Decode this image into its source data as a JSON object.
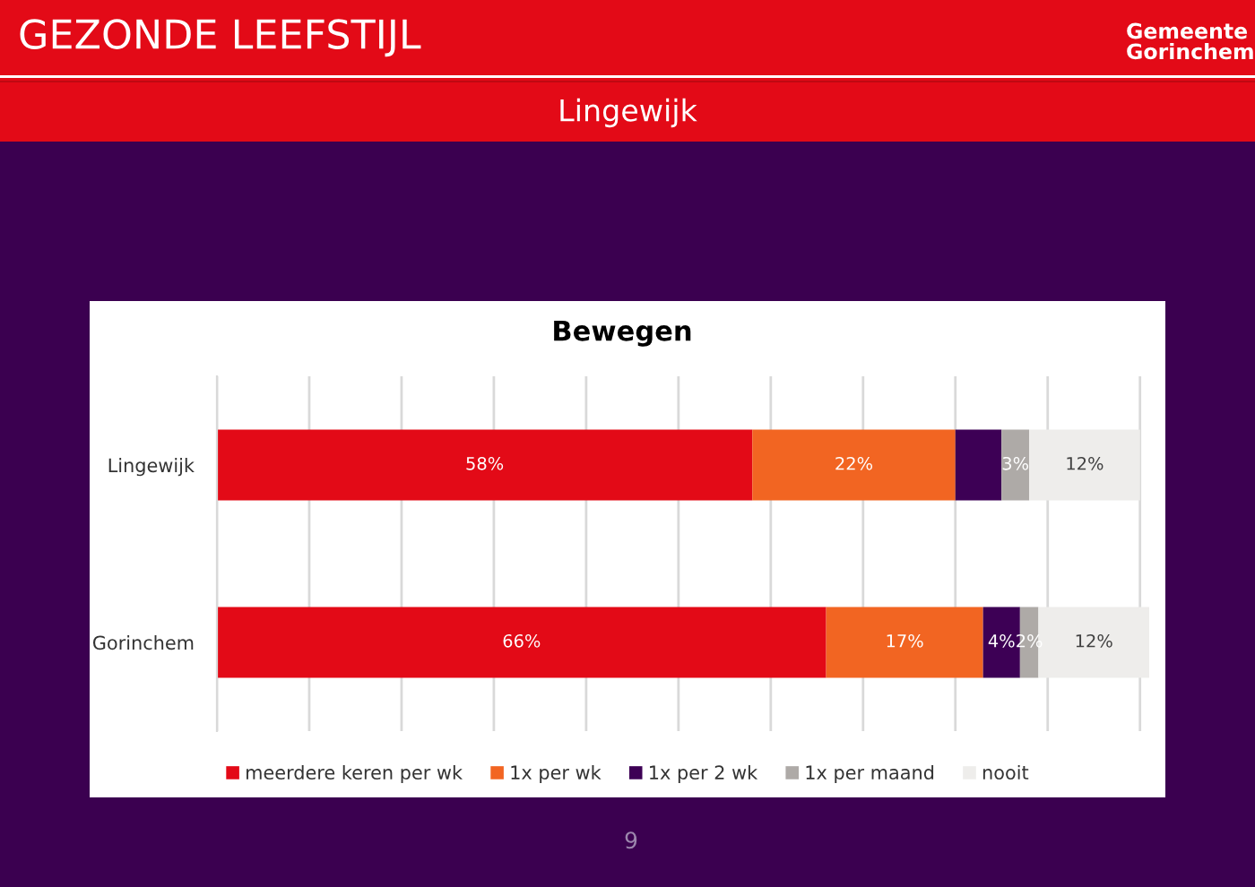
{
  "chart_data": {
    "type": "bar",
    "orientation": "horizontal",
    "stacked": true,
    "title": "Bewegen",
    "categories": [
      "Lingewijk",
      "Gorinchem"
    ],
    "series": [
      {
        "name": "meerdere keren per wk",
        "color": "#e30a17",
        "values": [
          58,
          66
        ],
        "value_labels": [
          "58%",
          "66%"
        ]
      },
      {
        "name": "1x per wk",
        "color": "#f26522",
        "values": [
          22,
          17
        ],
        "value_labels": [
          "22%",
          "17%"
        ]
      },
      {
        "name": "1x per 2 wk",
        "color": "#3d0055",
        "values": [
          5,
          4
        ],
        "value_labels": [
          null,
          "4%"
        ]
      },
      {
        "name": "1x per maand",
        "color": "#aeaaa7",
        "values": [
          3,
          2
        ],
        "value_labels": [
          "3%",
          "2%"
        ]
      },
      {
        "name": "nooit",
        "color": "#eeedeb",
        "values": [
          12,
          12
        ],
        "value_labels": [
          "12%",
          "12%"
        ]
      }
    ],
    "xlim": [
      0,
      101
    ],
    "xticks": [
      {
        "value": 0,
        "label": null
      },
      {
        "value": 10,
        "label": null
      },
      {
        "value": 20,
        "label": null
      },
      {
        "value": 30,
        "label": null
      },
      {
        "value": 40,
        "label": null
      },
      {
        "value": 50,
        "label": null
      },
      {
        "value": 60,
        "label": null
      },
      {
        "value": 70,
        "label": null
      },
      {
        "value": 80,
        "label": null
      },
      {
        "value": 90,
        "label": null
      },
      {
        "value": 100,
        "label": null
      }
    ],
    "grid": "x",
    "legend": "bottom",
    "tick_labels": "y",
    "annotations": [
      "GEZONDE LEEFSTIJL",
      "Lingewijk",
      "Gemeente\nGorinchem",
      "9"
    ]
  }
}
